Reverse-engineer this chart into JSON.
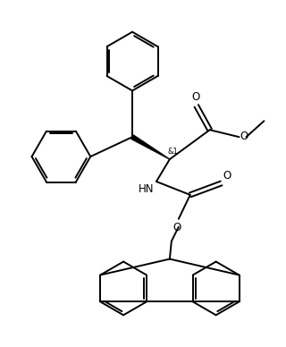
{
  "background_color": "#ffffff",
  "line_color": "#000000",
  "line_width": 1.4,
  "font_size": 8.5,
  "figsize": [
    3.2,
    3.88
  ],
  "dpi": 100,
  "xlim": [
    0,
    320
  ],
  "ylim": [
    0,
    388
  ]
}
